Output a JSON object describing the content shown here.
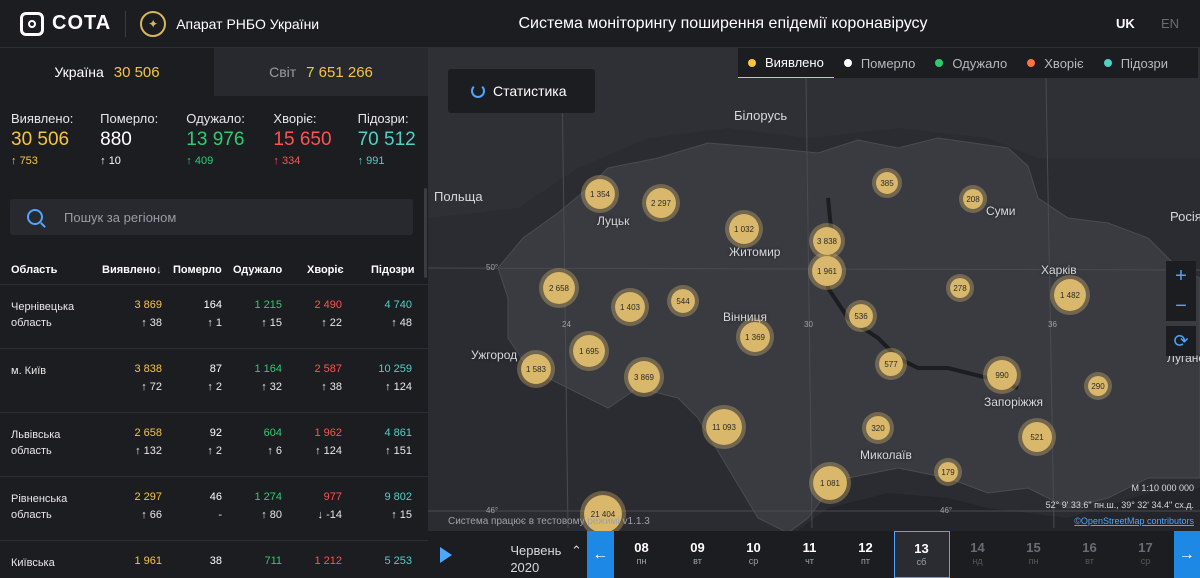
{
  "header": {
    "logo": "COTA",
    "emblem": "✦",
    "org": "Апарат РНБО України",
    "title": "Система моніторингу поширення епідемії коронавірусу",
    "lang_uk": "UK",
    "lang_en": "EN"
  },
  "tabs": [
    {
      "label": "Україна",
      "value": "30 506"
    },
    {
      "label": "Світ",
      "value": "7 651 266"
    }
  ],
  "stats": [
    {
      "label": "Виявлено:",
      "value": "30 506",
      "delta": "753",
      "color": "#f5c542",
      "arrow": "↑"
    },
    {
      "label": "Померло:",
      "value": "880",
      "delta": "10",
      "color": "#ffffff",
      "arrow": "↑"
    },
    {
      "label": "Одужало:",
      "value": "13 976",
      "delta": "409",
      "color": "#2ecc71",
      "arrow": "↑"
    },
    {
      "label": "Хворіє:",
      "value": "15 650",
      "delta": "334",
      "color": "#ff5252",
      "arrow": "↑"
    },
    {
      "label": "Підозри:",
      "value": "70 512",
      "delta": "991",
      "color": "#4fd1c5",
      "arrow": "↑"
    }
  ],
  "search": {
    "placeholder": "Пошук за регіоном"
  },
  "table": {
    "headers": [
      "Область",
      "Виявлено↓",
      "Померло",
      "Одужало",
      "Хворіє",
      "Підозри"
    ],
    "rows": [
      {
        "name": "Чернівецька область",
        "detected": "3 869",
        "detected_d": "↑ 38",
        "died": "164",
        "died_d": "↑ 1",
        "recovered": "1 215",
        "recovered_d": "↑ 15",
        "sick": "2 490",
        "sick_d": "↑ 22",
        "susp": "4 740",
        "susp_d": "↑ 48"
      },
      {
        "name": "м. Київ",
        "detected": "3 838",
        "detected_d": "↑ 72",
        "died": "87",
        "died_d": "↑ 2",
        "recovered": "1 164",
        "recovered_d": "↑ 32",
        "sick": "2 587",
        "sick_d": "↑ 38",
        "susp": "10 259",
        "susp_d": "↑ 124"
      },
      {
        "name": "Львівська область",
        "detected": "2 658",
        "detected_d": "↑ 132",
        "died": "92",
        "died_d": "↑ 2",
        "recovered": "604",
        "recovered_d": "↑ 6",
        "sick": "1 962",
        "sick_d": "↑ 124",
        "susp": "4 861",
        "susp_d": "↑ 151"
      },
      {
        "name": "Рівненська область",
        "detected": "2 297",
        "detected_d": "↑ 66",
        "died": "46",
        "died_d": "-",
        "recovered": "1 274",
        "recovered_d": "↑ 80",
        "sick": "977",
        "sick_d": "↓ -14",
        "susp": "9 802",
        "susp_d": "↑ 15"
      },
      {
        "name": "Київська",
        "detected": "1 961",
        "detected_d": "",
        "died": "38",
        "died_d": "",
        "recovered": "711",
        "recovered_d": "",
        "sick": "1 212",
        "sick_d": "",
        "susp": "5 253",
        "susp_d": ""
      }
    ]
  },
  "map": {
    "stat_button": "Статистика",
    "legend": [
      {
        "label": "Виявлено",
        "color": "#f5c542"
      },
      {
        "label": "Померло",
        "color": "#ffffff"
      },
      {
        "label": "Одужало",
        "color": "#2ecc71"
      },
      {
        "label": "Хворіє",
        "color": "#ff7043"
      },
      {
        "label": "Підозри",
        "color": "#4fd1c5"
      }
    ],
    "countries": [
      "Білорусь",
      "Польща",
      "Росія"
    ],
    "cities": [
      "Луцьк",
      "Житомир",
      "Суми",
      "Харків",
      "Вінниця",
      "Ужгород",
      "Луганськ",
      "Запоріжжя",
      "Миколаїв"
    ],
    "grid_labels": [
      "50°",
      "24",
      "30",
      "36",
      "46°",
      "46°"
    ],
    "bubbles": [
      "1 354",
      "2 297",
      "1 032",
      "3 838",
      "385",
      "208",
      "1 961",
      "2 658",
      "1 403",
      "544",
      "278",
      "1 482",
      "536",
      "1 695",
      "1 369",
      "1 583",
      "3 869",
      "577",
      "990",
      "290",
      "11 093",
      "320",
      "521",
      "179",
      "1 081",
      "21 404"
    ],
    "scale": "M 1:10 000 000",
    "coords": "52° 9' 33.6\" пн.ш., 39° 32' 34.4\" сх.д.",
    "attribution": "©OpenStreetMap contributors",
    "works": "Система працює в тестовому режимі v1.1.3",
    "zoom_in": "+",
    "zoom_out": "−",
    "refresh": "⟳"
  },
  "timeline": {
    "month": "Червень",
    "year": "2020",
    "days": [
      {
        "n": "08",
        "w": "пн"
      },
      {
        "n": "09",
        "w": "вт"
      },
      {
        "n": "10",
        "w": "ср"
      },
      {
        "n": "11",
        "w": "чт"
      },
      {
        "n": "12",
        "w": "пт"
      },
      {
        "n": "13",
        "w": "сб"
      },
      {
        "n": "14",
        "w": "нд"
      },
      {
        "n": "15",
        "w": "пн"
      },
      {
        "n": "16",
        "w": "вт"
      },
      {
        "n": "17",
        "w": "ср"
      }
    ]
  }
}
